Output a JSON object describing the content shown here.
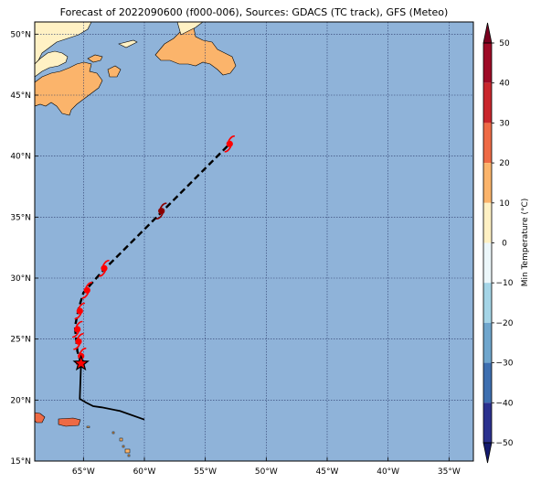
{
  "title": "Forecast of 2022090600 (f000-006), Sources: GDACS (TC track), GFS (Meteo)",
  "map": {
    "lon_range": [
      -69,
      -33
    ],
    "lat_range": [
      15,
      51
    ],
    "lon_ticks": [
      {
        "value": -65,
        "label": "65°W"
      },
      {
        "value": -60,
        "label": "60°W"
      },
      {
        "value": -55,
        "label": "55°W"
      },
      {
        "value": -50,
        "label": "50°W"
      },
      {
        "value": -45,
        "label": "45°W"
      },
      {
        "value": -40,
        "label": "40°W"
      },
      {
        "value": -35,
        "label": "35°W"
      }
    ],
    "lat_ticks": [
      {
        "value": 15,
        "label": "15°N"
      },
      {
        "value": 20,
        "label": "20°N"
      },
      {
        "value": 25,
        "label": "25°N"
      },
      {
        "value": 30,
        "label": "30°N"
      },
      {
        "value": 35,
        "label": "35°N"
      },
      {
        "value": 40,
        "label": "40°N"
      },
      {
        "value": 45,
        "label": "45°N"
      },
      {
        "value": 50,
        "label": "50°N"
      }
    ],
    "ocean_color": "#8fb3d9",
    "grid": true
  },
  "track": {
    "past": [
      [
        -60.0,
        18.4
      ],
      [
        -62.0,
        19.1
      ],
      [
        -63.5,
        19.4
      ],
      [
        -64.2,
        19.5
      ],
      [
        -64.8,
        19.8
      ],
      [
        -65.3,
        20.1
      ],
      [
        -65.2,
        23.0
      ]
    ],
    "forecast": [
      [
        -65.2,
        23.0
      ],
      [
        -65.5,
        24.0
      ],
      [
        -65.6,
        25.0
      ],
      [
        -65.7,
        26.0
      ],
      [
        -65.4,
        27.5
      ],
      [
        -65.0,
        28.8
      ],
      [
        -63.5,
        30.5
      ],
      [
        -58.5,
        35.5
      ],
      [
        -53.0,
        41.0
      ]
    ],
    "current_position": [
      -65.2,
      23.0
    ],
    "storm_symbols": [
      {
        "lon": -65.2,
        "lat": 23.6,
        "color": "#ff0000"
      },
      {
        "lon": -65.4,
        "lat": 24.8,
        "color": "#ff0000"
      },
      {
        "lon": -65.5,
        "lat": 25.8,
        "color": "#ff0000"
      },
      {
        "lon": -65.3,
        "lat": 27.3,
        "color": "#ff0000"
      },
      {
        "lon": -64.7,
        "lat": 29.0,
        "color": "#ff0000"
      },
      {
        "lon": -63.3,
        "lat": 30.8,
        "color": "#ff0000"
      },
      {
        "lon": -58.6,
        "lat": 35.5,
        "color": "#8b0000"
      },
      {
        "lon": -53.0,
        "lat": 41.0,
        "color": "#ff0000"
      }
    ]
  },
  "colorbar": {
    "title": "Min Temperature (°C)",
    "ticks": [
      "50",
      "40",
      "30",
      "20",
      "10",
      "0",
      "−10",
      "−20",
      "−30",
      "−40",
      "−50"
    ],
    "levels": [
      {
        "range": [
          40,
          50
        ],
        "color": "#9e0a26"
      },
      {
        "range": [
          30,
          40
        ],
        "color": "#c9262c"
      },
      {
        "range": [
          20,
          30
        ],
        "color": "#ee6a45"
      },
      {
        "range": [
          10,
          20
        ],
        "color": "#fbb46b"
      },
      {
        "range": [
          0,
          10
        ],
        "color": "#fff1c4"
      },
      {
        "range": [
          -10,
          0
        ],
        "color": "#ecf7fa"
      },
      {
        "range": [
          -20,
          -10
        ],
        "color": "#a5d5e7"
      },
      {
        "range": [
          -30,
          -20
        ],
        "color": "#6fa6cd"
      },
      {
        "range": [
          -40,
          -30
        ],
        "color": "#3e6fb0"
      },
      {
        "range": [
          -50,
          -40
        ],
        "color": "#2b318f"
      }
    ],
    "extend_max_color": "#7a0020",
    "extend_min_color": "#141a6e"
  }
}
